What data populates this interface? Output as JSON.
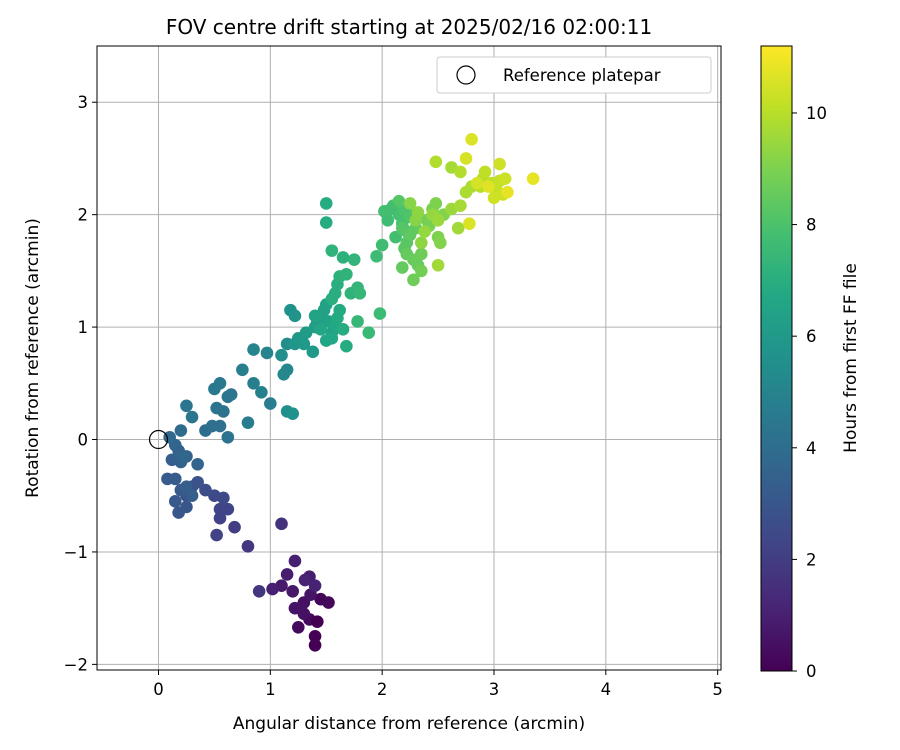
{
  "chart_data": {
    "type": "scatter",
    "title": "FOV centre drift starting at 2025/02/16 02:00:11",
    "xlabel": "Angular distance from reference (arcmin)",
    "ylabel": "Rotation from reference (arcmin)",
    "xlim": [
      -0.55,
      5.03
    ],
    "ylim": [
      -2.05,
      3.5
    ],
    "xticks": [
      0,
      1,
      2,
      3,
      4,
      5
    ],
    "xtick_labels": [
      "0",
      "1",
      "2",
      "3",
      "4",
      "5"
    ],
    "yticks": [
      -2,
      -1,
      0,
      1,
      2,
      3
    ],
    "ytick_labels": [
      "−2",
      "−1",
      "0",
      "1",
      "2",
      "3"
    ],
    "grid": true,
    "legend": {
      "position": "upper right",
      "label": "Reference platepar"
    },
    "reference_point": {
      "x": 0,
      "y": 0
    },
    "colorbar": {
      "label": "Hours from first FF file",
      "range": [
        0,
        11.2
      ],
      "ticks": [
        0,
        2,
        4,
        6,
        8,
        10
      ],
      "tick_labels": [
        "0",
        "2",
        "4",
        "6",
        "8",
        "10"
      ],
      "colormap": "viridis"
    },
    "points": [
      [
        1.4,
        -1.83,
        0.0
      ],
      [
        1.4,
        -1.75,
        0.05
      ],
      [
        1.45,
        -1.42,
        0.1
      ],
      [
        1.52,
        -1.45,
        0.2
      ],
      [
        1.35,
        -1.6,
        0.3
      ],
      [
        1.25,
        -1.67,
        0.3
      ],
      [
        1.3,
        -1.55,
        0.5
      ],
      [
        1.3,
        -1.45,
        0.5
      ],
      [
        1.36,
        -1.38,
        0.6
      ],
      [
        1.22,
        -1.5,
        0.6
      ],
      [
        1.2,
        -1.35,
        0.7
      ],
      [
        1.1,
        -1.3,
        0.8
      ],
      [
        1.15,
        -1.2,
        0.9
      ],
      [
        1.35,
        -1.22,
        0.9
      ],
      [
        1.02,
        -1.33,
        1.0
      ],
      [
        1.22,
        -1.08,
        1.0
      ],
      [
        1.31,
        -1.25,
        1.1
      ],
      [
        1.4,
        -1.3,
        1.1
      ],
      [
        1.42,
        -1.62,
        0.0
      ],
      [
        1.1,
        -0.75,
        1.6
      ],
      [
        0.8,
        -0.95,
        1.8
      ],
      [
        0.9,
        -1.35,
        1.8
      ],
      [
        0.68,
        -0.78,
        2.0
      ],
      [
        0.52,
        -0.85,
        2.2
      ],
      [
        0.55,
        -0.7,
        2.2
      ],
      [
        0.55,
        -0.62,
        2.3
      ],
      [
        0.62,
        -0.62,
        2.3
      ],
      [
        0.5,
        -0.5,
        2.5
      ],
      [
        0.58,
        -0.52,
        2.5
      ],
      [
        0.42,
        -0.45,
        2.6
      ],
      [
        0.35,
        -0.38,
        2.8
      ],
      [
        0.3,
        -0.42,
        2.8
      ],
      [
        0.25,
        -0.5,
        2.9
      ],
      [
        0.25,
        -0.6,
        3.0
      ],
      [
        0.18,
        -0.65,
        3.0
      ],
      [
        0.15,
        -0.55,
        3.1
      ],
      [
        0.2,
        -0.45,
        3.1
      ],
      [
        0.08,
        -0.35,
        3.2
      ],
      [
        0.15,
        -0.35,
        3.2
      ],
      [
        0.25,
        -0.42,
        3.3
      ],
      [
        0.3,
        -0.5,
        3.3
      ],
      [
        0.12,
        -0.18,
        3.4
      ],
      [
        0.2,
        -0.2,
        3.5
      ],
      [
        0.25,
        -0.15,
        3.5
      ],
      [
        0.18,
        -0.1,
        3.5
      ],
      [
        0.35,
        -0.22,
        3.6
      ],
      [
        0.15,
        -0.05,
        3.6
      ],
      [
        0.22,
        -0.15,
        3.7
      ],
      [
        0.1,
        0.02,
        3.8
      ],
      [
        0.2,
        0.08,
        3.9
      ],
      [
        0.42,
        0.08,
        4.0
      ],
      [
        0.48,
        0.12,
        4.1
      ],
      [
        0.55,
        0.12,
        4.1
      ],
      [
        0.62,
        0.02,
        4.2
      ],
      [
        0.58,
        0.25,
        4.2
      ],
      [
        0.52,
        0.28,
        4.3
      ],
      [
        0.62,
        0.38,
        4.4
      ],
      [
        0.65,
        0.4,
        4.4
      ],
      [
        0.5,
        0.45,
        4.5
      ],
      [
        0.55,
        0.5,
        4.5
      ],
      [
        0.25,
        0.3,
        4.4
      ],
      [
        0.3,
        0.2,
        4.4
      ],
      [
        0.8,
        0.15,
        4.6
      ],
      [
        1.0,
        0.32,
        4.7
      ],
      [
        0.75,
        0.62,
        4.8
      ],
      [
        0.85,
        0.5,
        4.8
      ],
      [
        0.92,
        0.42,
        4.9
      ],
      [
        0.85,
        0.8,
        5.0
      ],
      [
        0.97,
        0.77,
        5.0
      ],
      [
        1.12,
        0.58,
        5.2
      ],
      [
        1.15,
        0.62,
        5.2
      ],
      [
        1.15,
        0.85,
        5.4
      ],
      [
        1.1,
        0.75,
        5.5
      ],
      [
        1.15,
        0.25,
        5.5
      ],
      [
        1.2,
        0.23,
        5.6
      ],
      [
        1.18,
        1.15,
        5.6
      ],
      [
        1.22,
        1.1,
        5.7
      ],
      [
        1.22,
        0.85,
        5.8
      ],
      [
        1.25,
        0.9,
        5.9
      ],
      [
        1.3,
        0.85,
        6.0
      ],
      [
        1.38,
        0.78,
        6.0
      ],
      [
        1.32,
        0.95,
        6.1
      ],
      [
        1.4,
        1.0,
        6.2
      ],
      [
        1.42,
        1.05,
        6.2
      ],
      [
        1.45,
        1.1,
        6.3
      ],
      [
        1.48,
        1.15,
        6.3
      ],
      [
        1.5,
        1.2,
        6.4
      ],
      [
        1.52,
        1.05,
        6.4
      ],
      [
        1.55,
        0.95,
        6.5
      ],
      [
        1.4,
        1.1,
        6.5
      ],
      [
        1.45,
        0.98,
        6.6
      ],
      [
        1.5,
        0.88,
        6.6
      ],
      [
        1.55,
        0.9,
        6.7
      ],
      [
        1.58,
        1.02,
        6.7
      ],
      [
        1.6,
        1.08,
        6.8
      ],
      [
        1.62,
        1.15,
        6.8
      ],
      [
        1.65,
        0.98,
        6.9
      ],
      [
        1.68,
        0.83,
        6.9
      ],
      [
        1.5,
        2.1,
        6.9
      ],
      [
        1.5,
        1.93,
        6.9
      ],
      [
        1.55,
        1.25,
        7.0
      ],
      [
        1.58,
        1.3,
        7.0
      ],
      [
        1.6,
        1.38,
        7.0
      ],
      [
        1.62,
        1.45,
        7.1
      ],
      [
        1.65,
        1.62,
        7.1
      ],
      [
        1.68,
        1.47,
        7.2
      ],
      [
        1.55,
        1.68,
        7.2
      ],
      [
        1.72,
        1.3,
        7.2
      ],
      [
        1.75,
        1.6,
        7.3
      ],
      [
        1.78,
        1.35,
        7.3
      ],
      [
        1.8,
        1.3,
        7.4
      ],
      [
        1.78,
        1.05,
        7.4
      ],
      [
        1.88,
        0.95,
        7.5
      ],
      [
        1.98,
        1.12,
        7.6
      ],
      [
        1.95,
        1.63,
        7.6
      ],
      [
        2.0,
        1.73,
        7.7
      ],
      [
        2.05,
        1.95,
        7.7
      ],
      [
        2.02,
        2.03,
        7.8
      ],
      [
        2.1,
        2.08,
        7.8
      ],
      [
        2.12,
        1.8,
        7.8
      ],
      [
        2.15,
        2.0,
        7.9
      ],
      [
        2.18,
        1.92,
        7.9
      ],
      [
        2.2,
        2.05,
        8.0
      ],
      [
        2.22,
        1.85,
        8.0
      ],
      [
        2.25,
        1.98,
        8.1
      ],
      [
        2.28,
        2.0,
        8.1
      ],
      [
        2.15,
        2.12,
        8.2
      ],
      [
        2.18,
        1.88,
        8.2
      ],
      [
        2.2,
        1.7,
        8.3
      ],
      [
        2.22,
        1.75,
        8.3
      ],
      [
        2.25,
        1.82,
        8.4
      ],
      [
        2.3,
        1.88,
        8.4
      ],
      [
        2.22,
        1.65,
        8.5
      ],
      [
        2.18,
        1.53,
        8.5
      ],
      [
        2.28,
        1.6,
        8.6
      ],
      [
        2.32,
        1.55,
        8.6
      ],
      [
        2.35,
        1.65,
        8.7
      ],
      [
        2.28,
        1.42,
        8.7
      ],
      [
        2.35,
        1.5,
        8.8
      ],
      [
        2.4,
        1.95,
        8.8
      ],
      [
        2.42,
        1.9,
        8.9
      ],
      [
        2.45,
        2.05,
        8.9
      ],
      [
        2.48,
        2.1,
        9.0
      ],
      [
        2.5,
        1.8,
        9.0
      ],
      [
        2.52,
        1.75,
        9.1
      ],
      [
        2.55,
        2.0,
        9.1
      ],
      [
        2.25,
        2.1,
        9.2
      ],
      [
        2.3,
        1.95,
        9.2
      ],
      [
        2.32,
        2.02,
        9.3
      ],
      [
        2.35,
        1.75,
        9.3
      ],
      [
        2.38,
        1.85,
        9.4
      ],
      [
        2.45,
        2.0,
        9.4
      ],
      [
        2.5,
        1.95,
        9.5
      ],
      [
        2.62,
        2.05,
        9.5
      ],
      [
        2.5,
        1.55,
        9.6
      ],
      [
        2.68,
        1.88,
        9.6
      ],
      [
        2.7,
        2.08,
        9.7
      ],
      [
        2.62,
        2.42,
        9.7
      ],
      [
        2.75,
        2.2,
        9.8
      ],
      [
        2.8,
        2.25,
        9.8
      ],
      [
        2.7,
        2.38,
        9.9
      ],
      [
        2.48,
        2.47,
        9.9
      ],
      [
        2.88,
        2.25,
        10.0
      ],
      [
        2.9,
        2.32,
        10.0
      ],
      [
        2.92,
        2.38,
        10.1
      ],
      [
        2.98,
        2.28,
        10.1
      ],
      [
        3.02,
        2.22,
        10.2
      ],
      [
        3.05,
        2.3,
        10.2
      ],
      [
        3.08,
        2.18,
        10.3
      ],
      [
        3.1,
        2.32,
        10.3
      ],
      [
        3.0,
        2.15,
        10.4
      ],
      [
        3.05,
        2.45,
        10.4
      ],
      [
        2.85,
        2.28,
        10.5
      ],
      [
        2.75,
        2.5,
        10.5
      ],
      [
        2.8,
        2.67,
        10.6
      ],
      [
        2.78,
        1.92,
        10.6
      ],
      [
        2.95,
        2.25,
        10.7
      ],
      [
        3.35,
        2.32,
        10.8
      ],
      [
        3.12,
        2.2,
        10.8
      ],
      [
        2.08,
        2.05,
        7.8
      ]
    ]
  }
}
